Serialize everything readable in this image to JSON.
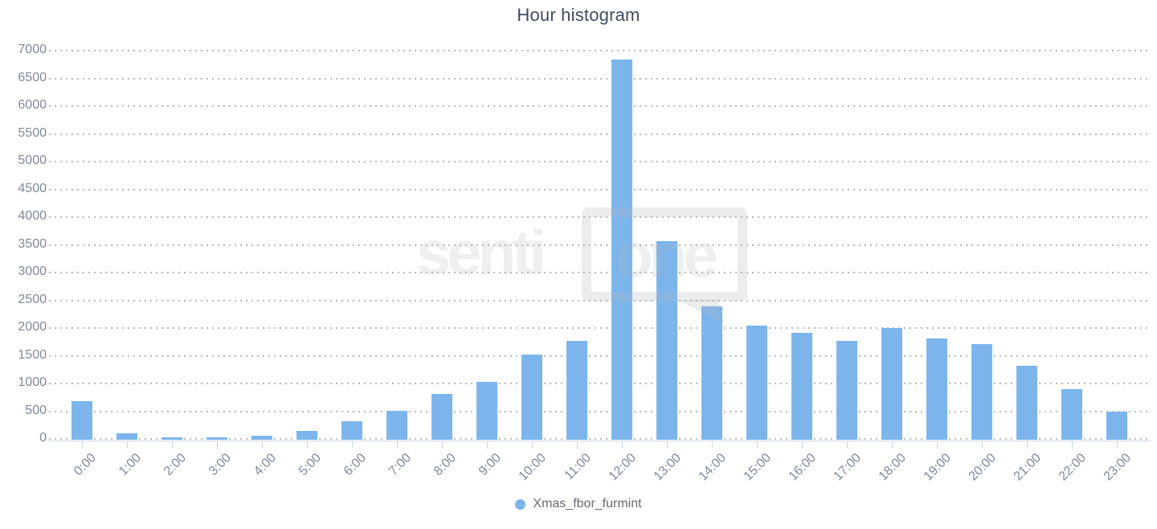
{
  "title": "Hour histogram",
  "watermark": {
    "text": "senti",
    "bubble_text": "one"
  },
  "legend": {
    "label": "Xmas_fbor_furmint",
    "marker_color": "#7cb5ec"
  },
  "colors": {
    "bar": "#7cb5ec",
    "title_text": "#3e4c63",
    "axis_label_text": "#7e899d",
    "legend_text": "#666a73",
    "grid_dots": "#b9b9b9",
    "axis_line": "#ccd6eb"
  },
  "chart_data": {
    "type": "bar",
    "title": "Hour histogram",
    "categories": [
      "0:00",
      "1:00",
      "2:00",
      "3:00",
      "4:00",
      "5:00",
      "6:00",
      "7:00",
      "8:00",
      "9:00",
      "10:00",
      "11:00",
      "12:00",
      "13:00",
      "14:00",
      "15:00",
      "16:00",
      "17:00",
      "18:00",
      "19:00",
      "20:00",
      "21:00",
      "22:00",
      "23:00"
    ],
    "series": [
      {
        "name": "Xmas_fbor_furmint",
        "color": "#7cb5ec",
        "values": [
          690,
          110,
          45,
          45,
          70,
          165,
          330,
          520,
          820,
          1040,
          1530,
          1780,
          6860,
          3580,
          2410,
          2060,
          1930,
          1780,
          2010,
          1830,
          1720,
          1330,
          910,
          510
        ]
      }
    ],
    "xlabel": "",
    "ylabel": "",
    "ylim": [
      0,
      7000
    ],
    "ytick_step": 500,
    "grid": "horizontal dotted lines",
    "legend_position": "bottom-center"
  }
}
